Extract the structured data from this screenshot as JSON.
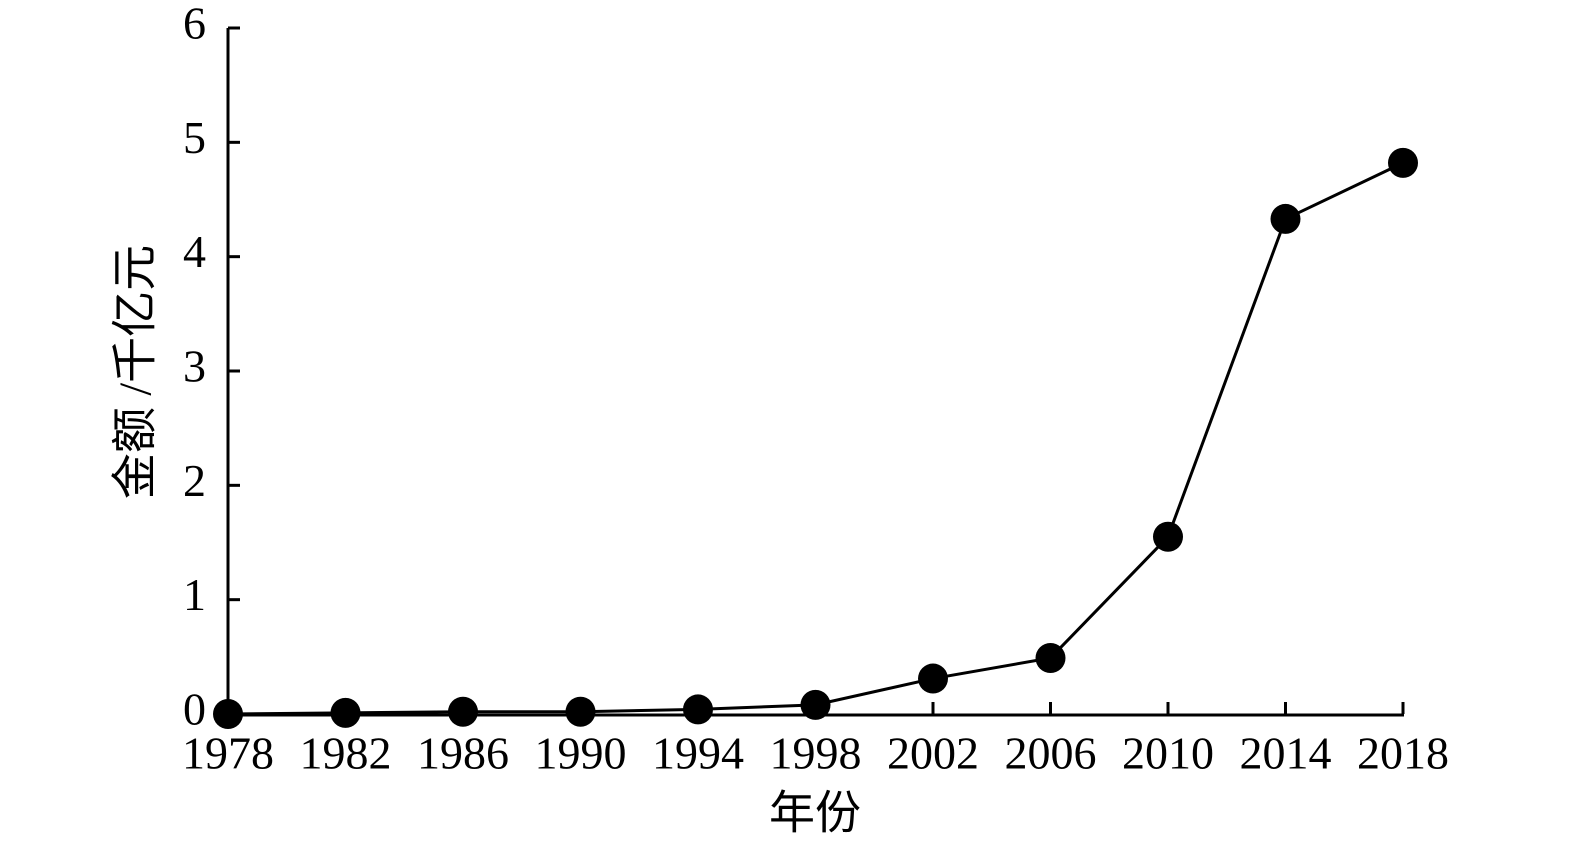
{
  "chart_data": {
    "type": "line",
    "x_label": "年份",
    "y_label": "金额 /千亿元",
    "x": [
      1978,
      1982,
      1986,
      1990,
      1994,
      1998,
      2002,
      2006,
      2010,
      2014,
      2018
    ],
    "series": [
      {
        "color": "#000000",
        "values": [
          0.0,
          0.01,
          0.02,
          0.02,
          0.04,
          0.08,
          0.31,
          0.49,
          1.55,
          4.33,
          4.82
        ]
      }
    ],
    "xlim": [
      1978,
      2018
    ],
    "xticks": [
      1978,
      1982,
      1986,
      1990,
      1994,
      1998,
      2002,
      2006,
      2010,
      2014,
      2018
    ],
    "ylim": [
      0,
      6
    ],
    "yticks": [
      0,
      1,
      2,
      3,
      4,
      5,
      6
    ],
    "grid": false
  }
}
